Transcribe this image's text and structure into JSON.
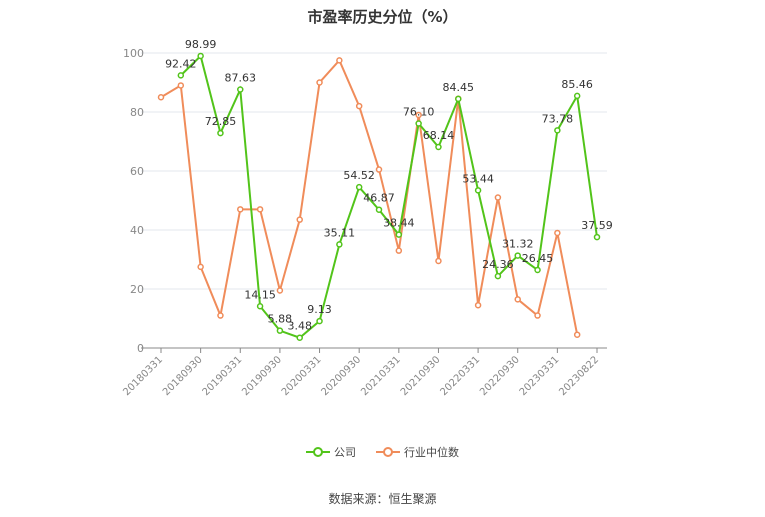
{
  "chart_data": {
    "type": "line",
    "title": "市盈率历史分位（%）",
    "xlabel": "",
    "ylabel": "",
    "ylim": [
      0,
      100
    ],
    "yticks": [
      "0",
      "20",
      "40",
      "60",
      "80",
      "100"
    ],
    "x_tick_labels": [
      "20180331",
      "20180930",
      "20190331",
      "20190930",
      "20200331",
      "20200930",
      "20210331",
      "20210930",
      "20220331",
      "20220930",
      "20230331",
      "20230822"
    ],
    "grid": true,
    "legend_position": "bottom",
    "series": [
      {
        "name": "公司",
        "color": "#52c41a",
        "values": [
          null,
          92.42,
          98.99,
          72.85,
          87.63,
          14.15,
          5.88,
          3.48,
          9.13,
          35.11,
          54.52,
          46.87,
          38.44,
          76.1,
          68.14,
          84.45,
          53.44,
          24.36,
          31.32,
          26.45,
          73.78,
          85.46,
          37.59
        ],
        "labels": [
          "",
          "92.42",
          "98.99",
          "72.85",
          "87.63",
          "14.15",
          "5.88",
          "3.48",
          "9.13",
          "35.11",
          "54.52",
          "46.87",
          "38.44",
          "76.10",
          "68.14",
          "84.45",
          "53.44",
          "24.36",
          "31.32",
          "26.45",
          "73.78",
          "85.46",
          "37.59"
        ]
      },
      {
        "name": "行业中位数",
        "color": "#f08c5a",
        "values": [
          85,
          89,
          27.5,
          11,
          47,
          47,
          19.5,
          43.5,
          90,
          97.5,
          82,
          60.5,
          33,
          79,
          29.5,
          84.5,
          14.5,
          51,
          16.5,
          11,
          39,
          4.5,
          null
        ]
      }
    ]
  },
  "source": "数据来源：恒生聚源"
}
